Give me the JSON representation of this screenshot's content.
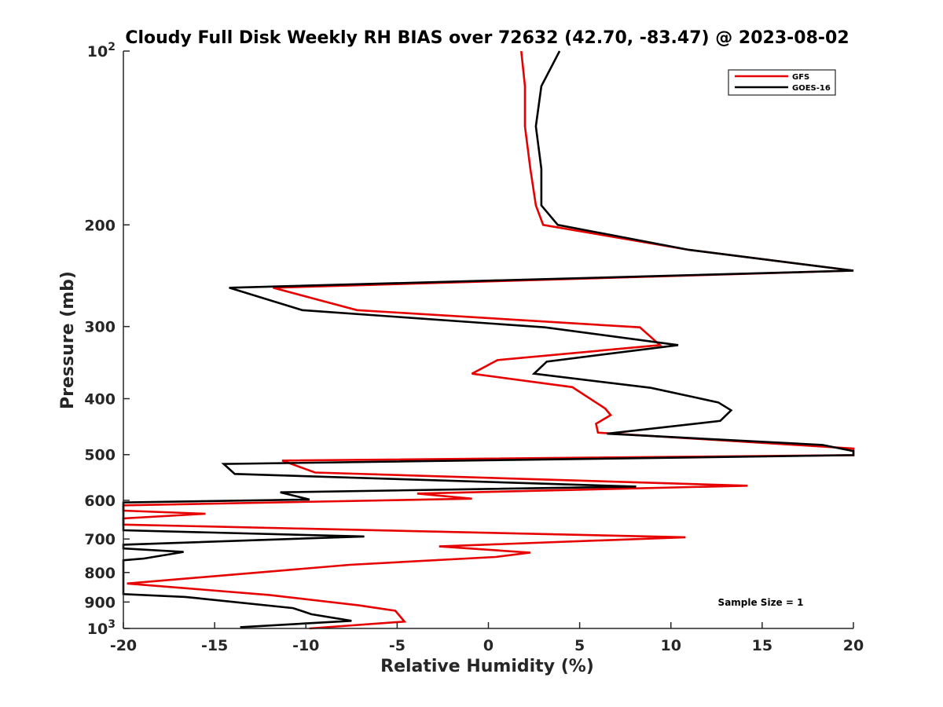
{
  "chart_data": {
    "type": "line",
    "title": "Cloudy Full Disk Weekly RH BIAS over 72632 (42.70, -83.47) @ 2023-08-02",
    "xlabel": "Relative Humidity (%)",
    "ylabel": "Pressure (mb)",
    "xlim": [
      -20,
      20
    ],
    "ylim": [
      100,
      1000
    ],
    "yscale": "log",
    "y_reversed": true,
    "grid": false,
    "legend_placement": "top-right",
    "x_ticks": [
      -20,
      -15,
      -10,
      -5,
      0,
      5,
      10,
      15,
      20
    ],
    "y_ticks": [
      {
        "value": 100,
        "label": "10",
        "sup": "2"
      },
      {
        "value": 200,
        "label": "200",
        "sup": ""
      },
      {
        "value": 300,
        "label": "300",
        "sup": ""
      },
      {
        "value": 400,
        "label": "400",
        "sup": ""
      },
      {
        "value": 500,
        "label": "500",
        "sup": ""
      },
      {
        "value": 600,
        "label": "600",
        "sup": ""
      },
      {
        "value": 700,
        "label": "700",
        "sup": ""
      },
      {
        "value": 800,
        "label": "800",
        "sup": ""
      },
      {
        "value": 900,
        "label": "900",
        "sup": ""
      },
      {
        "value": 1000,
        "label": "10",
        "sup": "3"
      }
    ],
    "series": [
      {
        "name": "GFS",
        "color": "#e60000",
        "points": [
          [
            1.8,
            100
          ],
          [
            2.0,
            115
          ],
          [
            2.0,
            135
          ],
          [
            2.3,
            160
          ],
          [
            2.6,
            185
          ],
          [
            3.0,
            200
          ],
          [
            11.0,
            221
          ],
          [
            20,
            240
          ],
          [
            -11.8,
            257
          ],
          [
            -7.2,
            281
          ],
          [
            8.3,
            301
          ],
          [
            9.4,
            323
          ],
          [
            0.5,
            343
          ],
          [
            -0.9,
            362
          ],
          [
            4.6,
            382
          ],
          [
            6.4,
            416
          ],
          [
            6.7,
            427
          ],
          [
            5.9,
            442
          ],
          [
            6.0,
            458
          ],
          [
            20,
            488
          ],
          [
            20,
            501
          ],
          [
            -11.3,
            512
          ],
          [
            -9.5,
            537
          ],
          [
            14.2,
            566
          ],
          [
            -3.9,
            584
          ],
          [
            -0.9,
            596
          ],
          [
            -20,
            612
          ],
          [
            -20,
            625
          ],
          [
            -15.5,
            633
          ],
          [
            -20,
            645
          ],
          [
            -20,
            661
          ],
          [
            10.8,
            695
          ],
          [
            -2.7,
            721
          ],
          [
            2.3,
            739
          ],
          [
            0.4,
            752
          ],
          [
            -7.6,
            776
          ],
          [
            -19.8,
            836
          ],
          [
            -12.0,
            875
          ],
          [
            -7.1,
            912
          ],
          [
            -5.1,
            932
          ],
          [
            -4.6,
            973
          ],
          [
            -9.8,
            1000
          ]
        ]
      },
      {
        "name": "GOES-16",
        "color": "#000000",
        "points": [
          [
            3.9,
            100
          ],
          [
            2.9,
            115
          ],
          [
            2.6,
            135
          ],
          [
            2.9,
            160
          ],
          [
            2.9,
            185
          ],
          [
            3.8,
            200
          ],
          [
            11.0,
            221
          ],
          [
            20,
            240
          ],
          [
            -14.2,
            257
          ],
          [
            -10.2,
            281
          ],
          [
            3.1,
            301
          ],
          [
            10.4,
            323
          ],
          [
            3.2,
            345
          ],
          [
            2.5,
            362
          ],
          [
            8.9,
            383
          ],
          [
            12.6,
            406
          ],
          [
            13.3,
            419
          ],
          [
            12.7,
            437
          ],
          [
            6.5,
            460
          ],
          [
            18.3,
            481
          ],
          [
            20,
            493
          ],
          [
            20,
            501
          ],
          [
            -14.5,
            519
          ],
          [
            -13.9,
            540
          ],
          [
            8.1,
            568
          ],
          [
            -11.4,
            581
          ],
          [
            -9.8,
            598
          ],
          [
            -20,
            605
          ],
          [
            -20,
            676
          ],
          [
            -6.8,
            693
          ],
          [
            -20,
            716
          ],
          [
            -20,
            727
          ],
          [
            -16.7,
            737
          ],
          [
            -18.9,
            757
          ],
          [
            -20,
            762
          ],
          [
            -20,
            872
          ],
          [
            -16.6,
            882
          ],
          [
            -10.7,
            922
          ],
          [
            -9.7,
            945
          ],
          [
            -7.5,
            970
          ],
          [
            -13.6,
            995
          ]
        ]
      }
    ],
    "legend": [
      {
        "label": "GFS",
        "color": "#e60000"
      },
      {
        "label": "GOES-16",
        "color": "#000000"
      }
    ],
    "annotation": "Sample Size = 1"
  }
}
